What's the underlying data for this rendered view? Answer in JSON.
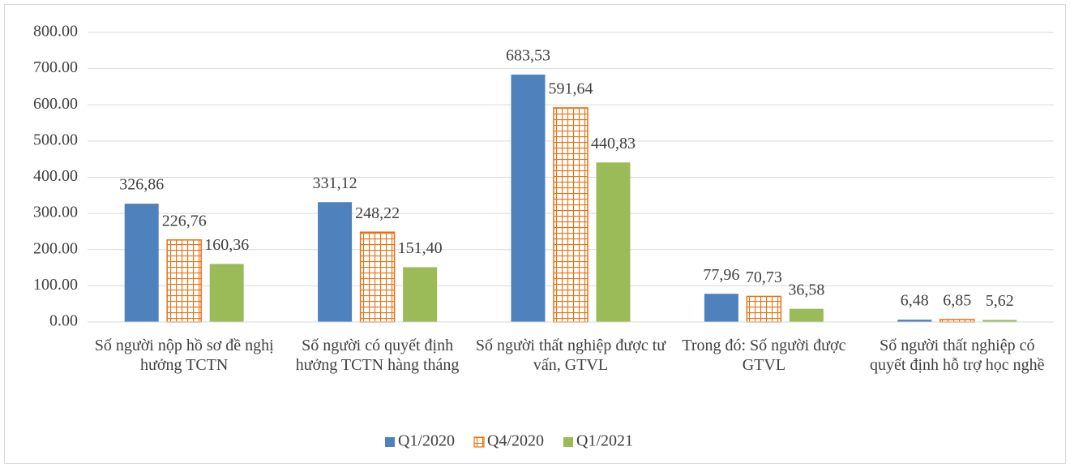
{
  "chart_data": {
    "type": "bar",
    "categories": [
      "Số người nộp hồ sơ đề nghị hưởng TCTN",
      "Số người có quyết định hưởng TCTN hàng tháng",
      "Số người thất nghiệp được tư vấn, GTVL",
      "Trong đó: Số người được GTVL",
      "Số người thất nghiệp có quyết định hỗ trợ học nghề"
    ],
    "series": [
      {
        "name": "Q1/2020",
        "color": "#4f81bd",
        "values": [
          326.86,
          331.12,
          683.53,
          77.96,
          6.48
        ],
        "value_labels": [
          "326,86",
          "331,12",
          "683,53",
          "77,96",
          "6,48"
        ]
      },
      {
        "name": "Q4/2020",
        "color": "#e8700f",
        "values": [
          226.76,
          248.22,
          591.64,
          70.73,
          6.85
        ],
        "value_labels": [
          "226,76",
          "248,22",
          "591,64",
          "70,73",
          "6,85"
        ]
      },
      {
        "name": "Q1/2021",
        "color": "#9bbb59",
        "values": [
          160.36,
          151.4,
          440.83,
          36.58,
          5.62
        ],
        "value_labels": [
          "160,36",
          "151,40",
          "440,83",
          "36,58",
          "5,62"
        ]
      }
    ],
    "ylim": [
      0,
      800
    ],
    "yticks": [
      {
        "value": 0,
        "label": "0.00"
      },
      {
        "value": 100,
        "label": "100.00"
      },
      {
        "value": 200,
        "label": "200.00"
      },
      {
        "value": 300,
        "label": "300.00"
      },
      {
        "value": 400,
        "label": "400.00"
      },
      {
        "value": 500,
        "label": "500.00"
      },
      {
        "value": 600,
        "label": "600.00"
      },
      {
        "value": 700,
        "label": "700.00"
      },
      {
        "value": 800,
        "label": "800.00"
      }
    ],
    "grid": true,
    "legend": "bottom"
  }
}
